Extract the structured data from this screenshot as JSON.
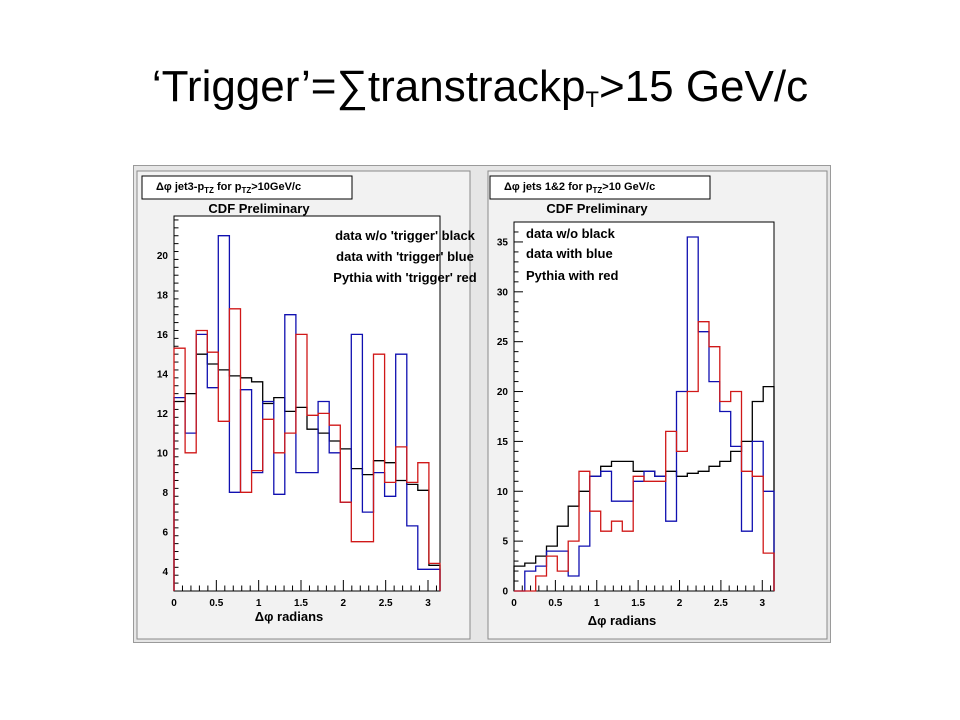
{
  "slide": {
    "title_prefix": "‘Trigger’=∑transtrackp",
    "title_sub": "T",
    "title_suffix": ">15 GeV/c"
  },
  "colors": {
    "black": "#000000",
    "blue": "#1010b0",
    "red": "#d01818",
    "frame": "#f2f2f2",
    "plot_bg": "#ffffff"
  },
  "chart_data": [
    {
      "type": "line",
      "subtype": "histogram-step",
      "title_prefix": "Δφ jet3-p",
      "title_sub": "TZ",
      "title_mid": " for p",
      "title_sub2": "TZ",
      "title_suffix": ">10GeV/c",
      "annotation": "CDF Preliminary",
      "xlabel": "Δφ radians",
      "ylabel": "",
      "xlim": [
        0,
        3.14159
      ],
      "ylim": [
        3,
        22
      ],
      "xticks": [
        0,
        0.5,
        1,
        1.5,
        2,
        2.5,
        3
      ],
      "xtick_labels": [
        "0",
        "0.5",
        "1",
        "1.5",
        "2",
        "2.5",
        "3"
      ],
      "yticks": [
        4,
        6,
        8,
        10,
        12,
        14,
        16,
        18,
        20
      ],
      "ytick_labels": [
        "4",
        "6",
        "8",
        "10",
        "12",
        "14",
        "16",
        "18",
        "20"
      ],
      "bins": 24,
      "legend": [
        "data w/o 'trigger' black",
        "data with 'trigger' blue",
        "Pythia with 'trigger' red"
      ],
      "series": [
        {
          "name": "data w/o 'trigger' black",
          "color": "#000000",
          "values": [
            12.6,
            13.0,
            15.0,
            14.5,
            14.2,
            13.9,
            13.8,
            13.6,
            12.5,
            12.8,
            12.1,
            12.3,
            11.2,
            11.0,
            10.6,
            10.2,
            9.2,
            8.9,
            9.6,
            9.5,
            8.6,
            8.4,
            8.1,
            4.3
          ]
        },
        {
          "name": "data with 'trigger' blue",
          "color": "#1010b0",
          "values": [
            12.8,
            11.0,
            16.0,
            13.3,
            21.0,
            8.0,
            13.2,
            9.0,
            12.6,
            7.9,
            17.0,
            9.0,
            9.0,
            12.6,
            10.0,
            7.5,
            16.0,
            7.0,
            9.0,
            7.8,
            15.0,
            6.3,
            4.1,
            4.1
          ]
        },
        {
          "name": "Pythia with 'trigger' red",
          "color": "#d01818",
          "values": [
            15.3,
            10.0,
            16.2,
            15.1,
            11.6,
            17.3,
            8.0,
            9.1,
            11.7,
            10.0,
            11.0,
            16.0,
            11.9,
            12.0,
            11.4,
            7.5,
            5.5,
            5.5,
            15.0,
            8.5,
            10.3,
            8.5,
            9.5,
            4.4
          ]
        }
      ]
    },
    {
      "type": "line",
      "subtype": "histogram-step",
      "title_prefix": "Δφ jets 1&2 for p",
      "title_sub": "TZ",
      "title_suffix": ">10 GeV/c",
      "annotation": "CDF Preliminary",
      "xlabel": "Δφ radians",
      "ylabel": "",
      "xlim": [
        0,
        3.14159
      ],
      "ylim": [
        0,
        37
      ],
      "xticks": [
        0,
        0.5,
        1,
        1.5,
        2,
        2.5,
        3
      ],
      "xtick_labels": [
        "0",
        "0.5",
        "1",
        "1.5",
        "2",
        "2.5",
        "3"
      ],
      "yticks": [
        0,
        5,
        10,
        15,
        20,
        25,
        30,
        35
      ],
      "ytick_labels": [
        "0",
        "5",
        "10",
        "15",
        "20",
        "25",
        "30",
        "35"
      ],
      "bins": 24,
      "legend": [
        "data w/o black",
        "data with blue",
        "Pythia with red"
      ],
      "series": [
        {
          "name": "data w/o black",
          "color": "#000000",
          "values": [
            2.5,
            2.8,
            3.5,
            4.5,
            6.5,
            8.5,
            10.0,
            11.5,
            12.5,
            13.0,
            13.0,
            12.0,
            12.0,
            11.5,
            12.0,
            11.5,
            11.8,
            12.0,
            12.5,
            13.0,
            14.0,
            15.0,
            19.0,
            20.5
          ]
        },
        {
          "name": "data with blue",
          "color": "#1010b0",
          "values": [
            0.0,
            2.0,
            2.5,
            4.0,
            4.0,
            1.5,
            4.5,
            11.5,
            12.0,
            9.0,
            9.0,
            11.0,
            12.0,
            11.5,
            7.0,
            20.0,
            35.5,
            26.0,
            21.0,
            18.0,
            14.5,
            6.0,
            15.0,
            10.0
          ]
        },
        {
          "name": "Pythia with red",
          "color": "#d01818",
          "values": [
            0.0,
            0.0,
            1.5,
            3.5,
            2.0,
            5.0,
            12.0,
            8.0,
            6.0,
            7.0,
            6.0,
            11.5,
            11.0,
            11.0,
            16.0,
            14.0,
            20.0,
            27.0,
            24.5,
            19.0,
            20.0,
            12.0,
            11.5,
            3.8
          ]
        }
      ]
    }
  ]
}
